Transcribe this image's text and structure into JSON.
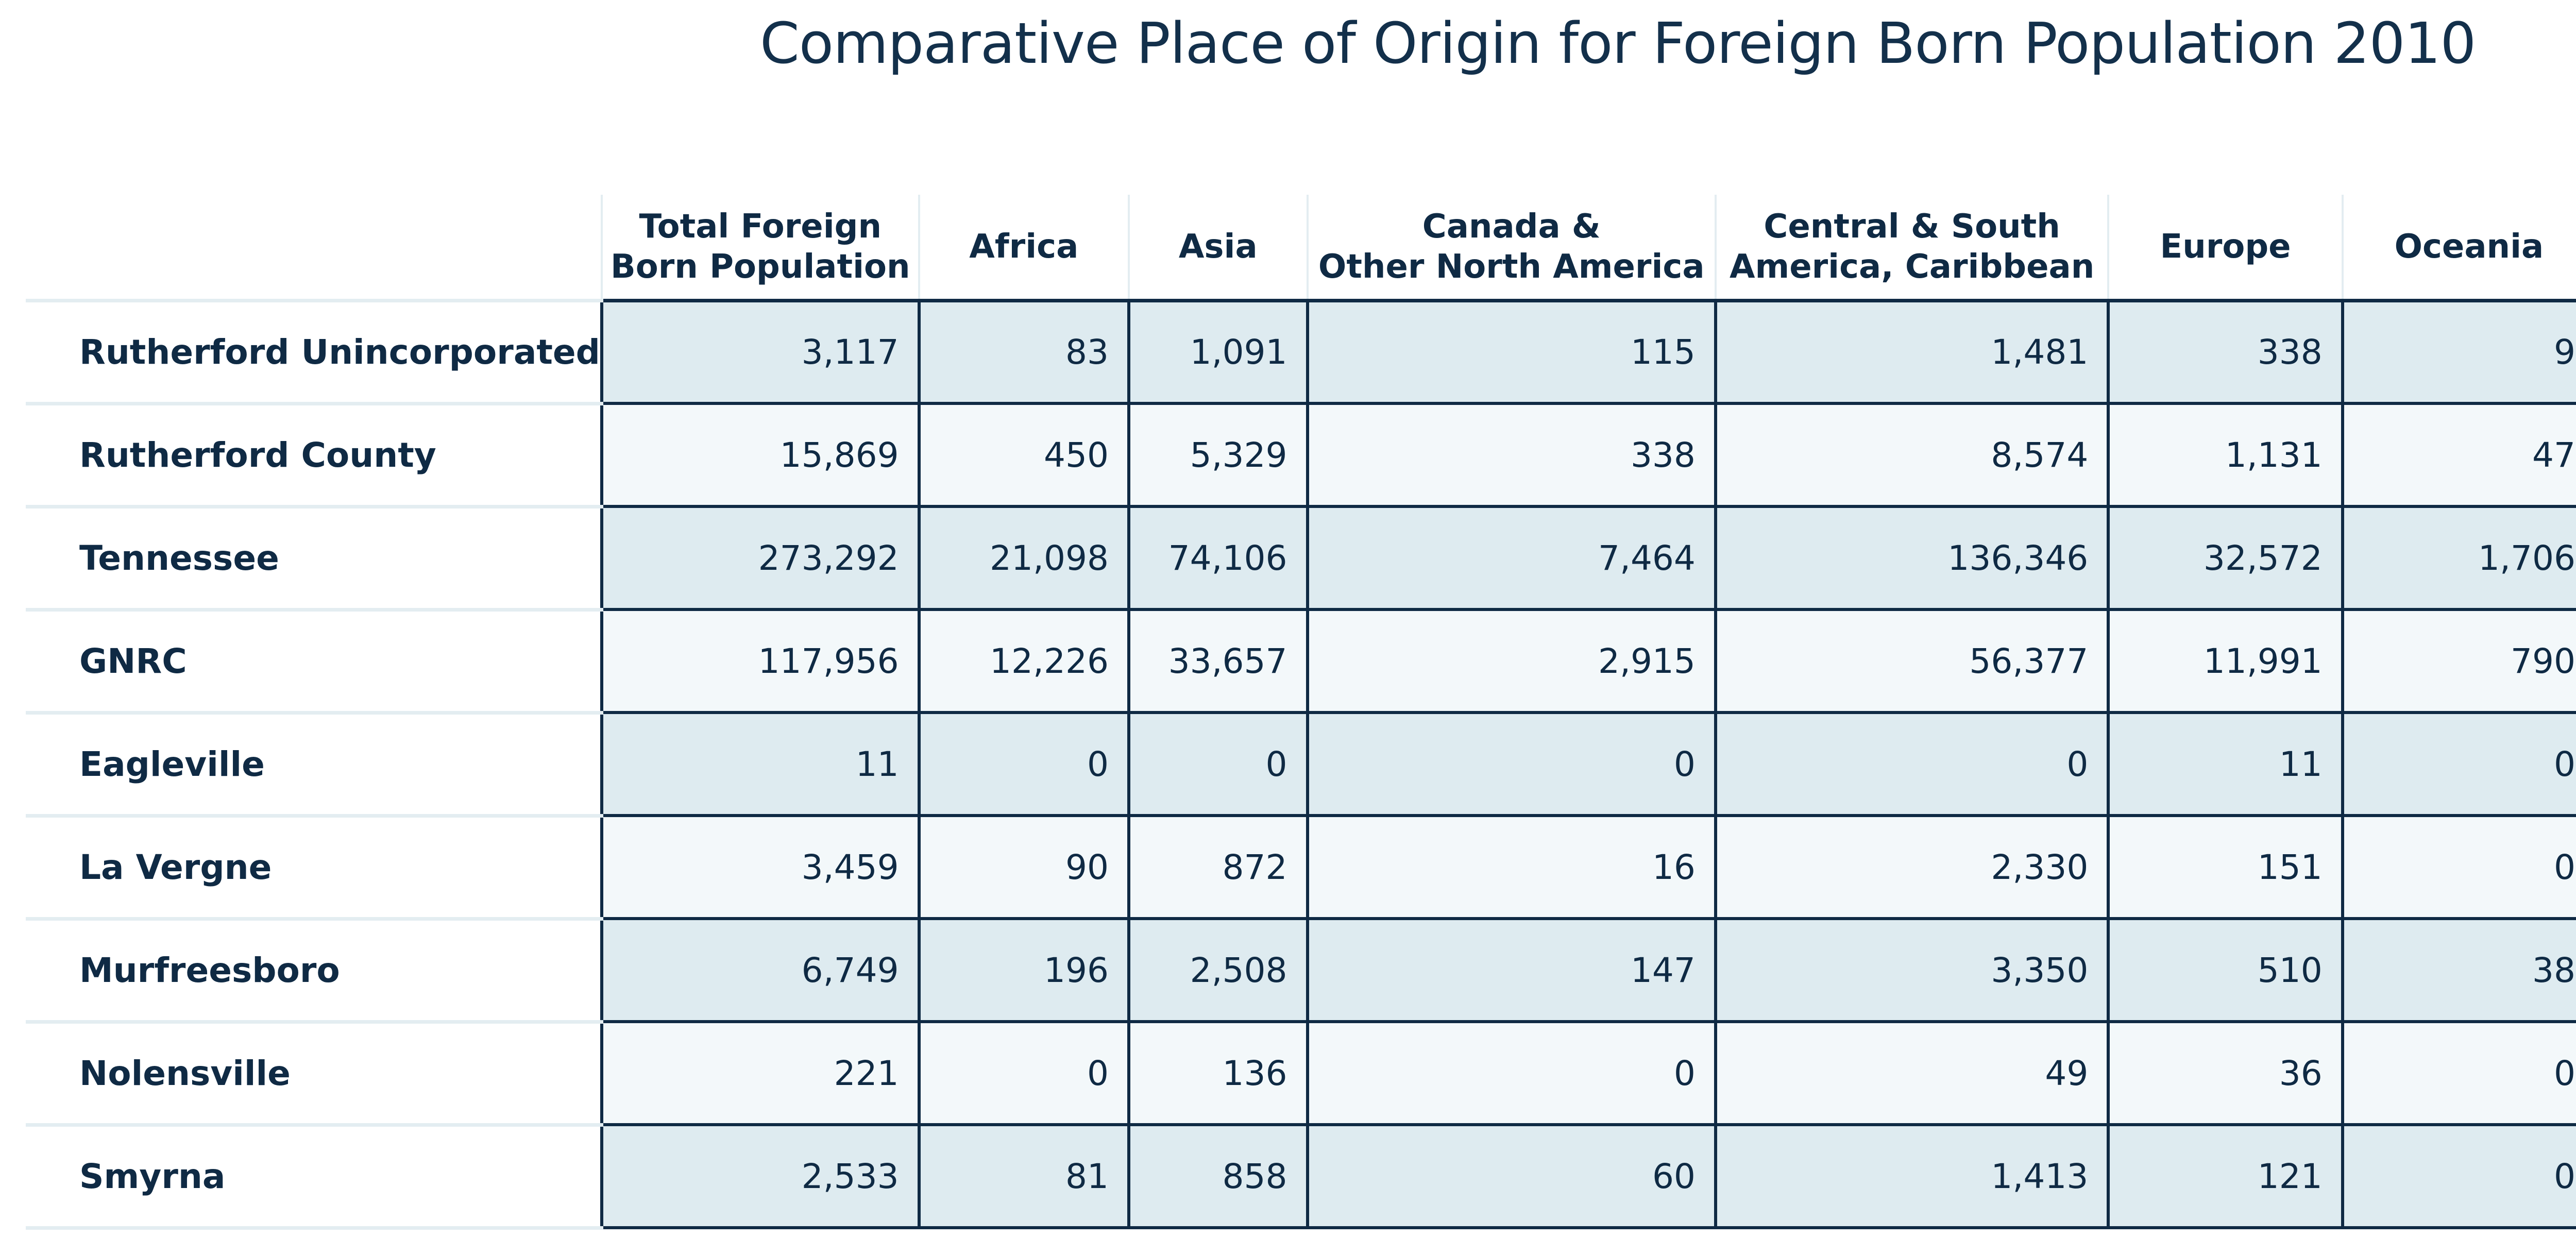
{
  "title": "Comparative Place of Origin for Foreign Born Population 2010",
  "table": {
    "headers": [
      {
        "line1": "Total Foreign",
        "line2": "Born Population"
      },
      {
        "line1": "Africa",
        "line2": ""
      },
      {
        "line1": "Asia",
        "line2": ""
      },
      {
        "line1": "Canada &",
        "line2": "Other North America"
      },
      {
        "line1": "Central & South",
        "line2": "America, Caribbean"
      },
      {
        "line1": "Europe",
        "line2": ""
      },
      {
        "line1": "Oceania",
        "line2": ""
      }
    ],
    "rows": [
      {
        "label": "Rutherford Unincorporated",
        "values": [
          "3,117",
          "83",
          "1,091",
          "115",
          "1,481",
          "338",
          "9"
        ]
      },
      {
        "label": "Rutherford County",
        "values": [
          "15,869",
          "450",
          "5,329",
          "338",
          "8,574",
          "1,131",
          "47"
        ]
      },
      {
        "label": "Tennessee",
        "values": [
          "273,292",
          "21,098",
          "74,106",
          "7,464",
          "136,346",
          "32,572",
          "1,706"
        ]
      },
      {
        "label": "GNRC",
        "values": [
          "117,956",
          "12,226",
          "33,657",
          "2,915",
          "56,377",
          "11,991",
          "790"
        ]
      },
      {
        "label": "Eagleville",
        "values": [
          "11",
          "0",
          "0",
          "0",
          "0",
          "11",
          "0"
        ]
      },
      {
        "label": "La Vergne",
        "values": [
          "3,459",
          "90",
          "872",
          "16",
          "2,330",
          "151",
          "0"
        ]
      },
      {
        "label": "Murfreesboro",
        "values": [
          "6,749",
          "196",
          "2,508",
          "147",
          "3,350",
          "510",
          "38"
        ]
      },
      {
        "label": "Nolensville",
        "values": [
          "221",
          "0",
          "136",
          "0",
          "49",
          "36",
          "0"
        ]
      },
      {
        "label": "Smyrna",
        "values": [
          "2,533",
          "81",
          "858",
          "60",
          "1,413",
          "121",
          "0"
        ]
      }
    ]
  },
  "colors": {
    "text": "#0f2a44",
    "band_dark": "#deebf0",
    "band_light": "#f3f8fa",
    "rule_light": "#e3edf1"
  }
}
